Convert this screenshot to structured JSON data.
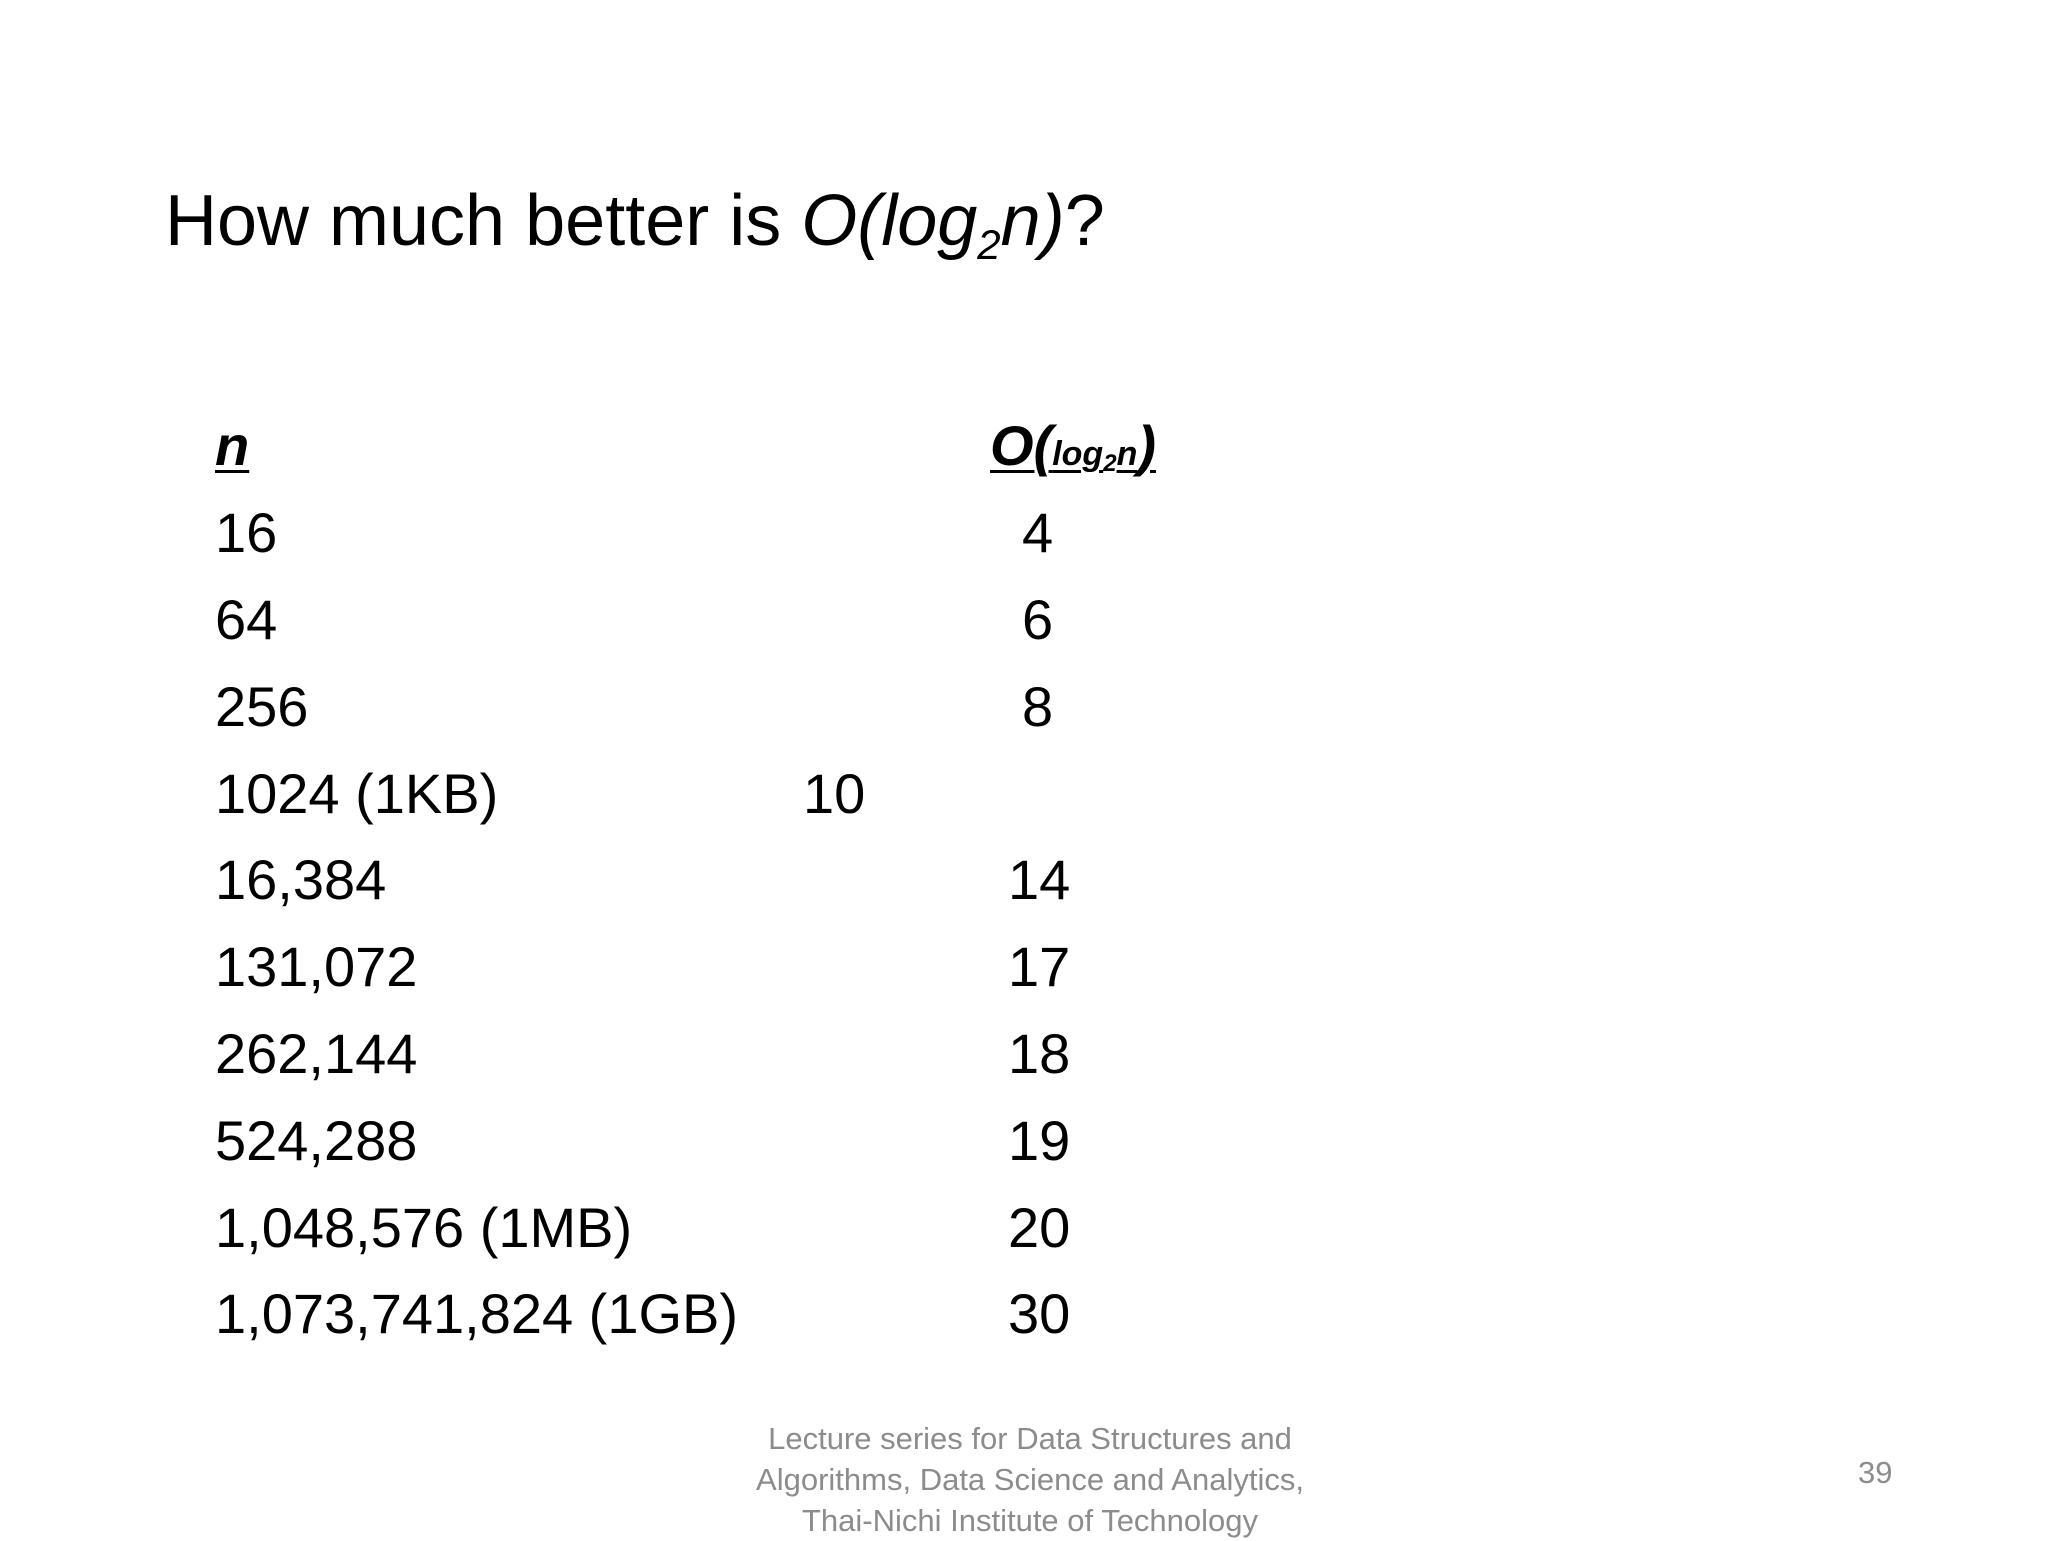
{
  "title": {
    "prefix": "How much better is ",
    "expr_start": "O(log",
    "subscript": "2",
    "expr_end": "n)",
    "suffix": "?"
  },
  "table": {
    "header_n": "n",
    "header_o_open": "O(",
    "header_o_log": "log",
    "header_o_sub": "2",
    "header_o_n": "n",
    "header_o_close": ")",
    "rows": [
      {
        "n": "16",
        "o": "4"
      },
      {
        "n": "64",
        "o": "6"
      },
      {
        "n": "256",
        "o": "8"
      },
      {
        "n": "1024 (1KB)",
        "o": "10"
      },
      {
        "n": "16,384",
        "o": "14"
      },
      {
        "n": "131,072",
        "o": "17"
      },
      {
        "n": "262,144",
        "o": "18"
      },
      {
        "n": "524,288",
        "o": "19"
      },
      {
        "n": "1,048,576 (1MB)",
        "o": "20"
      },
      {
        "n": "1,073,741,824 (1GB)",
        "o": "30"
      }
    ]
  },
  "footer": {
    "line1": "Lecture series for Data Structures and",
    "line2": "Algorithms, Data Science and Analytics,",
    "line3": "Thai-Nichi Institute of Technology"
  },
  "page_number": "39"
}
